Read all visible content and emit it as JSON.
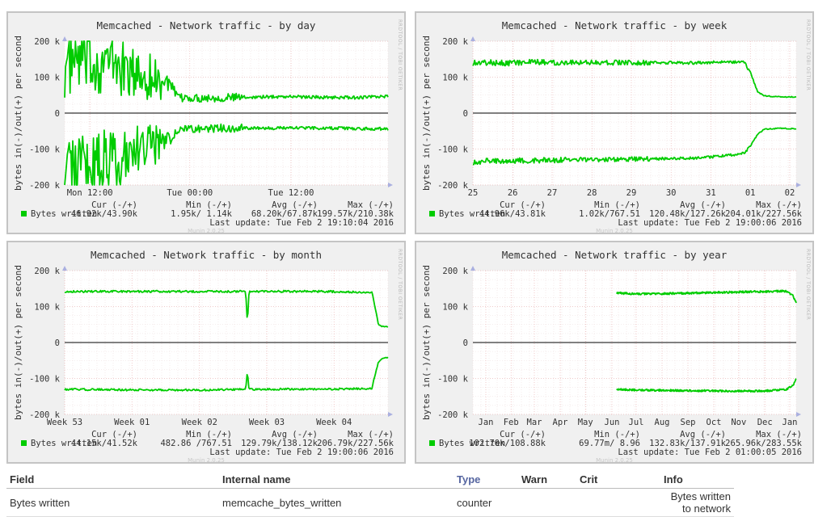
{
  "chart_data": [
    {
      "type": "line",
      "title": "Memcached - Network traffic - by day",
      "ylabel": "bytes in(-)/out(+) per second",
      "ylim": [
        -200000,
        200000
      ],
      "y_ticks": [
        {
          "v": 200000,
          "label": "200 k"
        },
        {
          "v": 100000,
          "label": "100 k"
        },
        {
          "v": 0,
          "label": "0"
        },
        {
          "v": -100000,
          "label": "-100 k"
        },
        {
          "v": -200000,
          "label": "-200 k"
        }
      ],
      "xlim": [
        0,
        1
      ],
      "x_ticks": [
        {
          "v": 0.078,
          "label": "Mon 12:00"
        },
        {
          "v": 0.387,
          "label": "Tue 00:00"
        },
        {
          "v": 0.7,
          "label": "Tue 12:00"
        }
      ],
      "series": [
        {
          "name": "Bytes written",
          "color": "#00cc00",
          "noise": [
            0.65,
            0.28,
            0.1
          ],
          "x": [
            0,
            0.02,
            0.05,
            0.1,
            0.15,
            0.2,
            0.25,
            0.3,
            0.32,
            0.35,
            0.4,
            0.5,
            0.6,
            0.7,
            0.8,
            0.9,
            1.0
          ],
          "values": [
            120000,
            140000,
            150000,
            140000,
            140000,
            110000,
            105000,
            90000,
            85000,
            42000,
            42000,
            43000,
            45000,
            46000,
            44000,
            43000,
            46920
          ]
        },
        {
          "name": "Bytes written (in)",
          "color": "#00cc00",
          "noise": [
            0.65,
            0.28,
            0.1
          ],
          "x": [
            0,
            0.02,
            0.05,
            0.1,
            0.15,
            0.2,
            0.25,
            0.3,
            0.32,
            0.35,
            0.4,
            0.5,
            0.6,
            0.7,
            0.8,
            0.9,
            1.0
          ],
          "values": [
            -130000,
            -140000,
            -140000,
            -130000,
            -130000,
            -110000,
            -95000,
            -80000,
            -75000,
            -43000,
            -43000,
            -42000,
            -42000,
            -41000,
            -42000,
            -43000,
            -43900
          ]
        }
      ],
      "legend": {
        "series": "Bytes written",
        "headers": [
          "Cur (-/+)",
          "Min (-/+)",
          "Avg (-/+)",
          "Max (-/+)"
        ],
        "values": [
          "46.92k/43.90k",
          "1.95k/ 1.14k",
          "68.20k/67.87k",
          "199.57k/210.38k"
        ],
        "update": "Last update: Tue Feb  2 19:10:04 2016"
      },
      "side_label": "RRDTOOL / TOBI OETIKER",
      "footer": "Munin 2.0.25"
    },
    {
      "type": "line",
      "title": "Memcached - Network traffic - by week",
      "ylabel": "bytes in(-)/out(+) per second",
      "ylim": [
        -200000,
        200000
      ],
      "y_ticks": [
        {
          "v": 200000,
          "label": "200 k"
        },
        {
          "v": 100000,
          "label": "100 k"
        },
        {
          "v": 0,
          "label": "0"
        },
        {
          "v": -100000,
          "label": "-100 k"
        },
        {
          "v": -200000,
          "label": "-200 k"
        }
      ],
      "xlim": [
        0,
        1
      ],
      "x_ticks": [
        {
          "v": 0.0,
          "label": "25"
        },
        {
          "v": 0.123,
          "label": "26"
        },
        {
          "v": 0.245,
          "label": "27"
        },
        {
          "v": 0.368,
          "label": "28"
        },
        {
          "v": 0.49,
          "label": "29"
        },
        {
          "v": 0.613,
          "label": "30"
        },
        {
          "v": 0.736,
          "label": "31"
        },
        {
          "v": 0.858,
          "label": "01"
        },
        {
          "v": 0.98,
          "label": "02"
        }
      ],
      "series": [
        {
          "name": "Bytes written",
          "color": "#00cc00",
          "noise": [
            0.06,
            0.05,
            0.03
          ],
          "x": [
            0,
            0.1,
            0.3,
            0.5,
            0.7,
            0.82,
            0.84,
            0.86,
            0.88,
            0.9,
            0.95,
            1.0
          ],
          "values": [
            140000,
            140000,
            142000,
            140000,
            140000,
            143000,
            140000,
            110000,
            60000,
            48000,
            45000,
            44960
          ]
        },
        {
          "name": "Bytes written (in)",
          "color": "#00cc00",
          "noise": [
            0.06,
            0.05,
            0.03
          ],
          "x": [
            0,
            0.1,
            0.3,
            0.5,
            0.7,
            0.82,
            0.84,
            0.86,
            0.88,
            0.9,
            0.95,
            1.0
          ],
          "values": [
            -135000,
            -132000,
            -130000,
            -128000,
            -125000,
            -115000,
            -110000,
            -90000,
            -60000,
            -45000,
            -42000,
            -43810
          ]
        }
      ],
      "legend": {
        "series": "Bytes written",
        "headers": [
          "Cur (-/+)",
          "Min (-/+)",
          "Avg (-/+)",
          "Max (-/+)"
        ],
        "values": [
          "44.96k/43.81k",
          "1.02k/767.51",
          "120.48k/127.26k",
          "204.01k/227.56k"
        ],
        "update": "Last update: Tue Feb  2 19:00:06 2016"
      },
      "side_label": "RRDTOOL / TOBI OETIKER",
      "footer": "Munin 2.0.25"
    },
    {
      "type": "line",
      "title": "Memcached - Network traffic - by month",
      "ylabel": "bytes in(-)/out(+) per second",
      "ylim": [
        -200000,
        200000
      ],
      "y_ticks": [
        {
          "v": 200000,
          "label": "200 k"
        },
        {
          "v": 100000,
          "label": "100 k"
        },
        {
          "v": 0,
          "label": "0"
        },
        {
          "v": -100000,
          "label": "-100 k"
        },
        {
          "v": -200000,
          "label": "-200 k"
        }
      ],
      "xlim": [
        0,
        1
      ],
      "x_ticks": [
        {
          "v": 0.0,
          "label": "Week 53"
        },
        {
          "v": 0.208,
          "label": "Week 01"
        },
        {
          "v": 0.417,
          "label": "Week 02"
        },
        {
          "v": 0.625,
          "label": "Week 03"
        },
        {
          "v": 0.833,
          "label": "Week 04"
        }
      ],
      "series": [
        {
          "name": "Bytes written",
          "color": "#00cc00",
          "noise": [
            0.02,
            0.02,
            0.02
          ],
          "x": [
            0,
            0.2,
            0.45,
            0.56,
            0.565,
            0.57,
            0.6,
            0.8,
            0.95,
            0.96,
            0.97,
            0.98,
            1.0
          ],
          "values": [
            142000,
            142000,
            142000,
            142000,
            50000,
            142000,
            142000,
            142000,
            140000,
            100000,
            50000,
            45000,
            44150
          ]
        },
        {
          "name": "Bytes written (in)",
          "color": "#00cc00",
          "noise": [
            0.02,
            0.02,
            0.02
          ],
          "x": [
            0,
            0.2,
            0.45,
            0.56,
            0.565,
            0.57,
            0.6,
            0.8,
            0.95,
            0.96,
            0.97,
            0.98,
            1.0
          ],
          "values": [
            -130000,
            -132000,
            -132000,
            -130000,
            -80000,
            -130000,
            -130000,
            -130000,
            -128000,
            -90000,
            -55000,
            -45000,
            -41520
          ]
        }
      ],
      "legend": {
        "series": "Bytes written",
        "headers": [
          "Cur (-/+)",
          "Min (-/+)",
          "Avg (-/+)",
          "Max (-/+)"
        ],
        "values": [
          "44.15k/41.52k",
          "482.86 /767.51",
          "129.79k/138.12k",
          "206.79k/227.56k"
        ],
        "update": "Last update: Tue Feb  2 19:00:06 2016"
      },
      "side_label": "RRDTOOL / TOBI OETIKER",
      "footer": "Munin 2.0.25"
    },
    {
      "type": "line",
      "title": "Memcached - Network traffic - by year",
      "ylabel": "bytes in(-)/out(+) per second",
      "ylim": [
        -200000,
        200000
      ],
      "y_ticks": [
        {
          "v": 200000,
          "label": "200 k"
        },
        {
          "v": 100000,
          "label": "100 k"
        },
        {
          "v": 0,
          "label": "0"
        },
        {
          "v": -100000,
          "label": "-100 k"
        },
        {
          "v": -200000,
          "label": "-200 k"
        }
      ],
      "xlim": [
        0,
        1
      ],
      "x_ticks": [
        {
          "v": 0.04,
          "label": "Jan"
        },
        {
          "v": 0.118,
          "label": "Feb"
        },
        {
          "v": 0.19,
          "label": "Mar"
        },
        {
          "v": 0.27,
          "label": "Apr"
        },
        {
          "v": 0.348,
          "label": "May"
        },
        {
          "v": 0.43,
          "label": "Jun"
        },
        {
          "v": 0.505,
          "label": "Jul"
        },
        {
          "v": 0.585,
          "label": "Aug"
        },
        {
          "v": 0.665,
          "label": "Sep"
        },
        {
          "v": 0.745,
          "label": "Oct"
        },
        {
          "v": 0.822,
          "label": "Nov"
        },
        {
          "v": 0.903,
          "label": "Dec"
        },
        {
          "v": 0.98,
          "label": "Jan"
        }
      ],
      "series": [
        {
          "name": "Bytes written",
          "color": "#00cc00",
          "noise": [
            0.02,
            0.02,
            0.02
          ],
          "x": [
            0.445,
            0.5,
            0.6,
            0.7,
            0.8,
            0.9,
            0.97,
            0.99,
            1.0
          ],
          "values": [
            138000,
            135000,
            136000,
            138000,
            140000,
            142000,
            143000,
            130000,
            110000
          ]
        },
        {
          "name": "Bytes written (in)",
          "color": "#00cc00",
          "noise": [
            0.02,
            0.02,
            0.02
          ],
          "x": [
            0.445,
            0.5,
            0.6,
            0.7,
            0.8,
            0.9,
            0.97,
            0.99,
            1.0
          ],
          "values": [
            -130000,
            -132000,
            -133000,
            -134000,
            -135000,
            -135000,
            -130000,
            -120000,
            -100000
          ]
        }
      ],
      "legend": {
        "series": "Bytes written",
        "headers": [
          "Cur (-/+)",
          "Min (-/+)",
          "Avg (-/+)",
          "Max (-/+)"
        ],
        "values": [
          "102.70k/108.88k",
          "69.77m/ 8.96",
          "132.83k/137.91k",
          "265.96k/283.55k"
        ],
        "update": "Last update: Tue Feb  2 01:00:05 2016"
      },
      "side_label": "RRDTOOL / TOBI OETIKER",
      "footer": "Munin 2.0.25"
    }
  ],
  "fields_table": {
    "headers": {
      "field": "Field",
      "internal": "Internal name",
      "type": "Type",
      "warn": "Warn",
      "crit": "Crit",
      "info": "Info"
    },
    "rows": [
      {
        "field": "Bytes written",
        "internal": "memcache_bytes_written",
        "type": "counter",
        "warn": "",
        "crit": "",
        "info": "Bytes written to network"
      }
    ]
  }
}
